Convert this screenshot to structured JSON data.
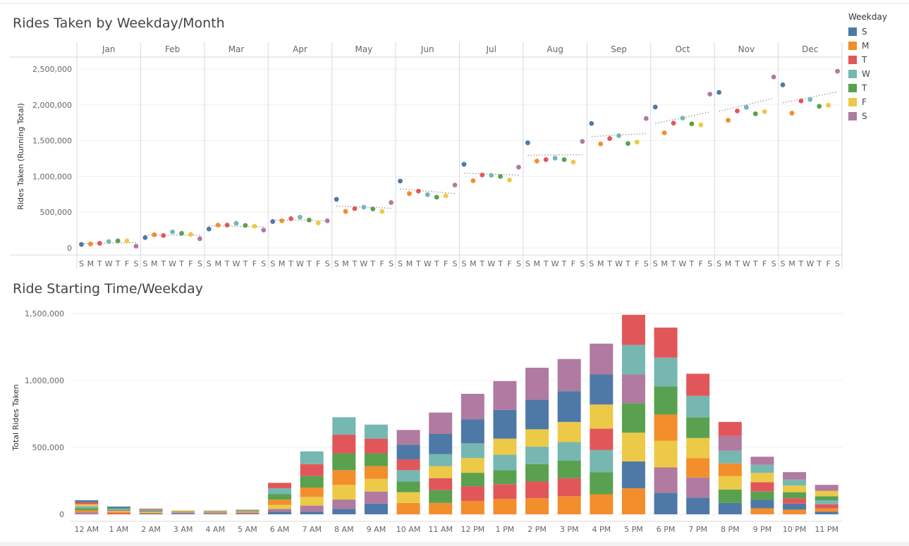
{
  "colors": {
    "S1": "#4e79a7",
    "M": "#f28e2b",
    "T1": "#e15759",
    "W": "#76b7b2",
    "T2": "#59a14f",
    "F": "#edc948",
    "S2": "#b07aa1"
  },
  "legend": {
    "title": "Weekday",
    "items": [
      {
        "key": "S1",
        "label": "S"
      },
      {
        "key": "M",
        "label": "M"
      },
      {
        "key": "T1",
        "label": "T"
      },
      {
        "key": "W",
        "label": "W"
      },
      {
        "key": "T2",
        "label": "T"
      },
      {
        "key": "F",
        "label": "F"
      },
      {
        "key": "S2",
        "label": "S"
      }
    ]
  },
  "chart_data": [
    {
      "type": "scatter",
      "title": "Rides Taken by Weekday/Month",
      "ylabel": "Rides Taken (Running Total)",
      "xlabel": "",
      "ylim": [
        0,
        2600000
      ],
      "yticks": [
        0,
        500000,
        1000000,
        1500000,
        2000000,
        2500000
      ],
      "ytick_labels": [
        "0",
        "500,000",
        "1,000,000",
        "1,500,000",
        "2,000,000",
        "2,500,000"
      ],
      "months": [
        "Jan",
        "Feb",
        "Mar",
        "Apr",
        "May",
        "Jun",
        "Jul",
        "Aug",
        "Sep",
        "Oct",
        "Nov",
        "Dec"
      ],
      "weekday_labels": [
        "S",
        "M",
        "T",
        "W",
        "T",
        "F",
        "S"
      ],
      "grid": true,
      "trend_lines": "dotted per month",
      "values": [
        [
          50000,
          55000,
          65000,
          90000,
          100000,
          100000,
          25000
        ],
        [
          145000,
          185000,
          175000,
          225000,
          205000,
          190000,
          130000
        ],
        [
          265000,
          320000,
          320000,
          345000,
          315000,
          305000,
          250000
        ],
        [
          370000,
          380000,
          410000,
          430000,
          390000,
          350000,
          380000
        ],
        [
          680000,
          510000,
          550000,
          570000,
          545000,
          510000,
          635000
        ],
        [
          935000,
          760000,
          795000,
          745000,
          710000,
          730000,
          880000
        ],
        [
          1170000,
          940000,
          1020000,
          1015000,
          1000000,
          950000,
          1130000
        ],
        [
          1470000,
          1215000,
          1235000,
          1255000,
          1235000,
          1200000,
          1490000
        ],
        [
          1740000,
          1455000,
          1530000,
          1570000,
          1460000,
          1480000,
          1810000
        ],
        [
          1970000,
          1610000,
          1745000,
          1815000,
          1735000,
          1720000,
          2150000
        ],
        [
          2175000,
          1785000,
          1915000,
          1965000,
          1875000,
          1905000,
          2390000
        ],
        [
          2280000,
          1885000,
          2055000,
          2075000,
          1980000,
          1995000,
          2470000
        ]
      ]
    },
    {
      "type": "bar",
      "stacked": true,
      "title": "Ride Starting Time/Weekday",
      "ylabel": "Total Rides Taken",
      "xlabel": "",
      "ylim": [
        0,
        1500000
      ],
      "yticks": [
        0,
        500000,
        1000000,
        1500000
      ],
      "ytick_labels": [
        "0",
        "500,000",
        "1,000,000",
        "1,500,000"
      ],
      "categories": [
        "12 AM",
        "1 AM",
        "2 AM",
        "3 AM",
        "4 AM",
        "5 AM",
        "6 AM",
        "7 AM",
        "8 AM",
        "9 AM",
        "10 AM",
        "11 AM",
        "12 PM",
        "1 PM",
        "2 PM",
        "3 PM",
        "4 PM",
        "5 PM",
        "6 PM",
        "7 PM",
        "8 PM",
        "9 PM",
        "10 PM",
        "11 PM"
      ],
      "segments": [
        [
          [
            "S2",
            15000
          ],
          [
            "M",
            15000
          ],
          [
            "T2",
            15000
          ],
          [
            "W",
            15000
          ],
          [
            "F",
            15000
          ],
          [
            "T1",
            15000
          ],
          [
            "S1",
            15000
          ]
        ],
        [
          [
            "T1",
            8000
          ],
          [
            "M",
            8000
          ],
          [
            "F",
            8000
          ],
          [
            "S2",
            8000
          ],
          [
            "W",
            8000
          ],
          [
            "T2",
            8000
          ],
          [
            "S1",
            10000
          ]
        ],
        [
          [
            "S1",
            6000
          ],
          [
            "M",
            6000
          ],
          [
            "F",
            6000
          ],
          [
            "S2",
            6000
          ],
          [
            "T2",
            6000
          ],
          [
            "W",
            6000
          ],
          [
            "T1",
            6000
          ]
        ],
        [
          [
            "S1",
            4000
          ],
          [
            "T1",
            4000
          ],
          [
            "S2",
            4000
          ],
          [
            "W",
            4000
          ],
          [
            "T2",
            4000
          ],
          [
            "F",
            4000
          ],
          [
            "M",
            4000
          ]
        ],
        [
          [
            "S1",
            4000
          ],
          [
            "M",
            4000
          ],
          [
            "T1",
            4000
          ],
          [
            "W",
            4000
          ],
          [
            "T2",
            4000
          ],
          [
            "F",
            4000
          ],
          [
            "S2",
            4000
          ]
        ],
        [
          [
            "S2",
            5000
          ],
          [
            "S1",
            5000
          ],
          [
            "M",
            5000
          ],
          [
            "F",
            5000
          ],
          [
            "T1",
            5000
          ],
          [
            "T2",
            5000
          ],
          [
            "W",
            5000
          ]
        ],
        [
          [
            "S1",
            20000
          ],
          [
            "S2",
            20000
          ],
          [
            "F",
            30000
          ],
          [
            "M",
            40000
          ],
          [
            "T2",
            40000
          ],
          [
            "W",
            45000
          ],
          [
            "T1",
            40000
          ]
        ],
        [
          [
            "S1",
            20000
          ],
          [
            "S2",
            45000
          ],
          [
            "F",
            65000
          ],
          [
            "M",
            70000
          ],
          [
            "T2",
            85000
          ],
          [
            "T1",
            90000
          ],
          [
            "W",
            95000
          ]
        ],
        [
          [
            "S1",
            40000
          ],
          [
            "S2",
            70000
          ],
          [
            "F",
            110000
          ],
          [
            "M",
            110000
          ],
          [
            "T2",
            125000
          ],
          [
            "T1",
            140000
          ],
          [
            "W",
            130000
          ]
        ],
        [
          [
            "S1",
            80000
          ],
          [
            "S2",
            90000
          ],
          [
            "F",
            95000
          ],
          [
            "M",
            95000
          ],
          [
            "T2",
            95000
          ],
          [
            "T1",
            110000
          ],
          [
            "W",
            105000
          ]
        ],
        [
          [
            "M",
            85000
          ],
          [
            "F",
            80000
          ],
          [
            "T2",
            80000
          ],
          [
            "W",
            85000
          ],
          [
            "T1",
            80000
          ],
          [
            "S1",
            110000
          ],
          [
            "S2",
            110000
          ]
        ],
        [
          [
            "M",
            85000
          ],
          [
            "T2",
            95000
          ],
          [
            "T1",
            90000
          ],
          [
            "F",
            90000
          ],
          [
            "W",
            90000
          ],
          [
            "S1",
            150000
          ],
          [
            "S2",
            160000
          ]
        ],
        [
          [
            "M",
            100000
          ],
          [
            "T1",
            110000
          ],
          [
            "T2",
            100000
          ],
          [
            "F",
            110000
          ],
          [
            "W",
            110000
          ],
          [
            "S1",
            180000
          ],
          [
            "S2",
            190000
          ]
        ],
        [
          [
            "M",
            115000
          ],
          [
            "T1",
            110000
          ],
          [
            "T2",
            105000
          ],
          [
            "W",
            115000
          ],
          [
            "F",
            120000
          ],
          [
            "S1",
            215000
          ],
          [
            "S2",
            215000
          ]
        ],
        [
          [
            "M",
            120000
          ],
          [
            "T1",
            125000
          ],
          [
            "T2",
            130000
          ],
          [
            "W",
            130000
          ],
          [
            "F",
            130000
          ],
          [
            "S1",
            220000
          ],
          [
            "S2",
            240000
          ]
        ],
        [
          [
            "M",
            135000
          ],
          [
            "T1",
            135000
          ],
          [
            "T2",
            130000
          ],
          [
            "W",
            140000
          ],
          [
            "F",
            150000
          ],
          [
            "S1",
            230000
          ],
          [
            "S2",
            240000
          ]
        ],
        [
          [
            "M",
            150000
          ],
          [
            "T2",
            165000
          ],
          [
            "W",
            165000
          ],
          [
            "T1",
            160000
          ],
          [
            "F",
            180000
          ],
          [
            "S1",
            225000
          ],
          [
            "S2",
            230000
          ]
        ],
        [
          [
            "M",
            195000
          ],
          [
            "S1",
            200000
          ],
          [
            "F",
            215000
          ],
          [
            "T2",
            220000
          ],
          [
            "S2",
            215000
          ],
          [
            "W",
            220000
          ],
          [
            "T1",
            225000
          ]
        ],
        [
          [
            "S1",
            160000
          ],
          [
            "S2",
            190000
          ],
          [
            "F",
            200000
          ],
          [
            "M",
            195000
          ],
          [
            "T2",
            210000
          ],
          [
            "W",
            215000
          ],
          [
            "T1",
            225000
          ]
        ],
        [
          [
            "S1",
            125000
          ],
          [
            "S2",
            150000
          ],
          [
            "M",
            145000
          ],
          [
            "F",
            150000
          ],
          [
            "T2",
            155000
          ],
          [
            "W",
            160000
          ],
          [
            "T1",
            165000
          ]
        ],
        [
          [
            "S1",
            85000
          ],
          [
            "T2",
            100000
          ],
          [
            "F",
            100000
          ],
          [
            "M",
            95000
          ],
          [
            "W",
            95000
          ],
          [
            "S2",
            110000
          ],
          [
            "T1",
            105000
          ]
        ],
        [
          [
            "M",
            45000
          ],
          [
            "S1",
            65000
          ],
          [
            "T2",
            60000
          ],
          [
            "T1",
            70000
          ],
          [
            "F",
            70000
          ],
          [
            "W",
            60000
          ],
          [
            "S2",
            60000
          ]
        ],
        [
          [
            "M",
            35000
          ],
          [
            "S1",
            45000
          ],
          [
            "T1",
            40000
          ],
          [
            "T2",
            45000
          ],
          [
            "F",
            50000
          ],
          [
            "W",
            45000
          ],
          [
            "S2",
            55000
          ]
        ],
        [
          [
            "S1",
            20000
          ],
          [
            "M",
            25000
          ],
          [
            "T1",
            30000
          ],
          [
            "W",
            30000
          ],
          [
            "T2",
            30000
          ],
          [
            "F",
            40000
          ],
          [
            "S2",
            45000
          ]
        ]
      ]
    }
  ]
}
